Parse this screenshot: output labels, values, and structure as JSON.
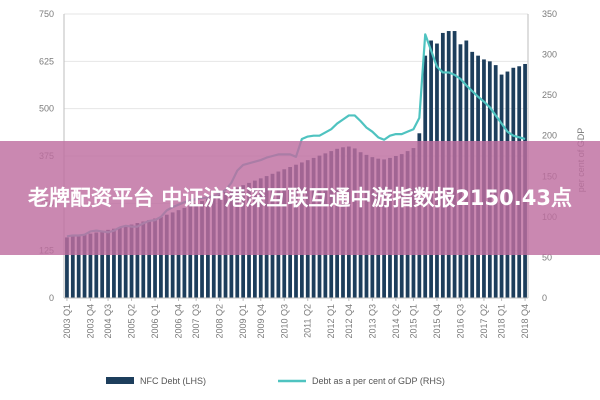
{
  "banner": {
    "headline": "老牌配资平台 中证沪港深互联互通中游指数报2150.43点"
  },
  "colors": {
    "bar": "#1d3e5c",
    "line": "#4fc3c0",
    "banner": "#be6ea0"
  },
  "chart_data": {
    "type": "bar",
    "title": "",
    "xlabel": "",
    "ylabel": "",
    "y2label": "per cent of GDP",
    "ylim": [
      0,
      750
    ],
    "y2lim": [
      0,
      350
    ],
    "yticks": [
      0,
      125,
      250,
      375,
      500,
      625,
      750
    ],
    "y2ticks": [
      0,
      50,
      100,
      150,
      200,
      250,
      300,
      350
    ],
    "grid": true,
    "legend_position": "bottom",
    "x_tick_labels": [
      "2003 Q1",
      "2003 Q4",
      "2004 Q3",
      "2005 Q2",
      "2006 Q1",
      "2006 Q4",
      "2007 Q3",
      "2008 Q2",
      "2009 Q1",
      "2009 Q4",
      "2010 Q3",
      "2011 Q2",
      "2012 Q1",
      "2012 Q4",
      "2013 Q3",
      "2014 Q2",
      "2015 Q1",
      "2015 Q4",
      "2016 Q3",
      "2017 Q2",
      "2018 Q1",
      "2018 Q4"
    ],
    "series": [
      {
        "name": "NFC Debt (LHS)",
        "type": "bar",
        "axis": "left",
        "values": [
          160,
          163,
          165,
          168,
          170,
          173,
          176,
          180,
          183,
          186,
          190,
          194,
          198,
          202,
          206,
          210,
          214,
          220,
          226,
          232,
          238,
          244,
          250,
          256,
          262,
          268,
          274,
          280,
          286,
          292,
          298,
          304,
          310,
          316,
          322,
          328,
          334,
          340,
          346,
          352,
          358,
          364,
          370,
          376,
          382,
          388,
          394,
          398,
          400,
          395,
          385,
          378,
          372,
          368,
          366,
          370,
          375,
          380,
          388,
          396,
          435,
          640,
          680,
          672,
          700,
          705,
          705,
          670,
          680,
          650,
          640,
          630,
          625,
          615,
          590,
          598,
          608,
          612,
          618
        ]
      },
      {
        "name": "Debt as a per cent of GDP (RHS)",
        "type": "line",
        "axis": "right",
        "values": [
          76,
          77,
          77,
          78,
          82,
          83,
          82,
          81,
          83,
          87,
          89,
          88,
          88,
          92,
          95,
          96,
          100,
          108,
          112,
          115,
          118,
          120,
          122,
          123,
          124,
          126,
          129,
          133,
          142,
          157,
          164,
          166,
          168,
          170,
          173,
          175,
          177,
          177,
          177,
          174,
          196,
          199,
          200,
          200,
          204,
          208,
          215,
          220,
          225,
          225,
          218,
          210,
          205,
          198,
          195,
          200,
          202,
          202,
          205,
          208,
          222,
          325,
          305,
          285,
          278,
          278,
          275,
          270,
          262,
          255,
          248,
          242,
          235,
          225,
          215,
          205,
          200,
          198,
          196
        ]
      }
    ]
  }
}
